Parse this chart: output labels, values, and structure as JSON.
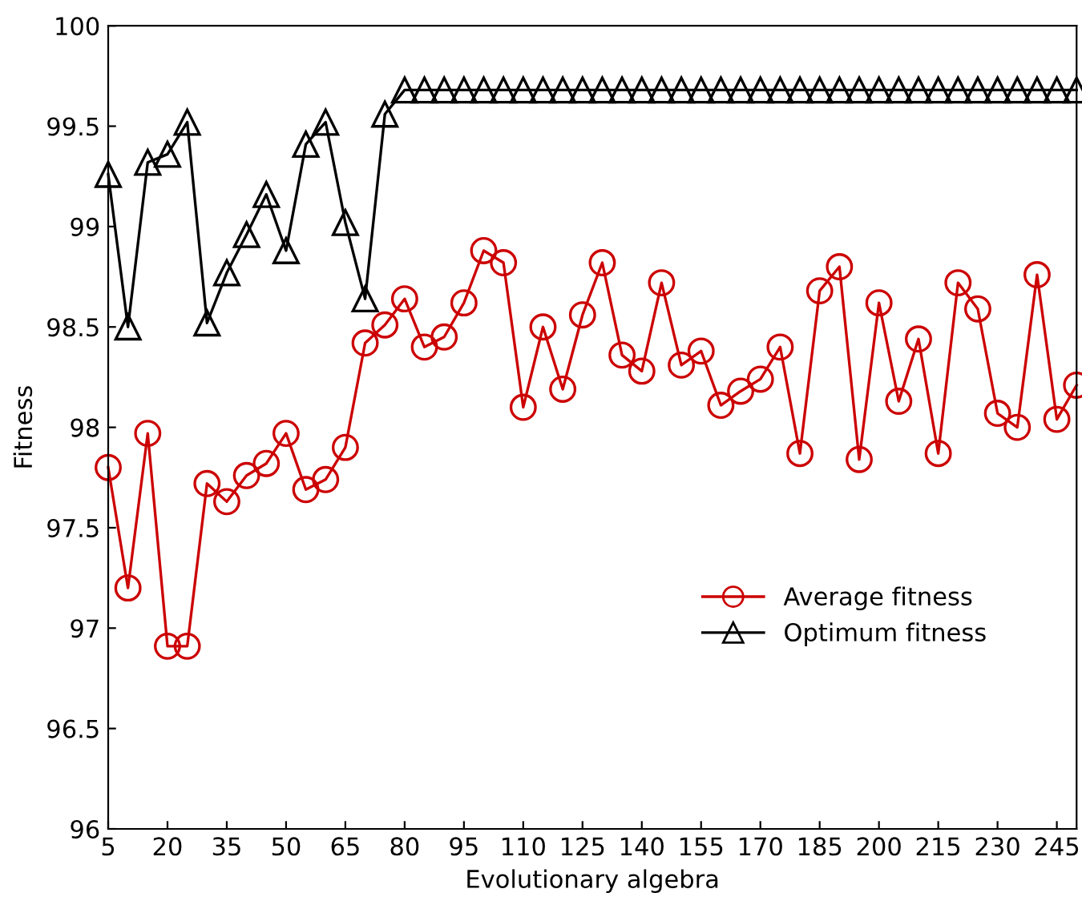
{
  "chart_data": {
    "type": "line",
    "xlabel": "Evolutionary algebra",
    "ylabel": "Fitness",
    "x": [
      5,
      10,
      15,
      20,
      25,
      30,
      35,
      40,
      45,
      50,
      55,
      60,
      65,
      70,
      75,
      80,
      85,
      90,
      95,
      100,
      105,
      110,
      115,
      120,
      125,
      130,
      135,
      140,
      145,
      150,
      155,
      160,
      165,
      170,
      175,
      180,
      185,
      190,
      195,
      200,
      205,
      210,
      215,
      220,
      225,
      230,
      235,
      240,
      245,
      250
    ],
    "series": [
      {
        "name": "Average fitness",
        "color": "#cc0000",
        "marker": "circle",
        "values": [
          97.8,
          97.2,
          97.97,
          96.91,
          96.91,
          97.72,
          97.63,
          97.76,
          97.82,
          97.97,
          97.69,
          97.74,
          97.9,
          98.42,
          98.51,
          98.64,
          98.4,
          98.45,
          98.62,
          98.88,
          98.82,
          98.1,
          98.5,
          98.19,
          98.56,
          98.82,
          98.36,
          98.28,
          98.72,
          98.31,
          98.38,
          98.11,
          98.18,
          98.24,
          98.4,
          97.87,
          98.68,
          98.8,
          97.84,
          98.62,
          98.13,
          98.44,
          97.87,
          98.72,
          98.59,
          98.07,
          98.0,
          98.76,
          98.04,
          98.21
        ]
      },
      {
        "name": "Optimum fitness",
        "color": "#000000",
        "marker": "triangle",
        "values": [
          99.26,
          98.5,
          99.32,
          99.36,
          99.52,
          98.52,
          98.77,
          98.96,
          99.16,
          98.88,
          99.41,
          99.52,
          99.02,
          98.64,
          99.56,
          99.68,
          99.68,
          99.68,
          99.68,
          99.68,
          99.68,
          99.68,
          99.68,
          99.68,
          99.68,
          99.68,
          99.68,
          99.68,
          99.68,
          99.68,
          99.68,
          99.68,
          99.68,
          99.68,
          99.68,
          99.68,
          99.68,
          99.68,
          99.68,
          99.68,
          99.68,
          99.68,
          99.68,
          99.68,
          99.68,
          99.68,
          99.68,
          99.68,
          99.68,
          99.68
        ]
      }
    ],
    "xlim": [
      5,
      250
    ],
    "xticks": [
      5,
      20,
      35,
      50,
      65,
      80,
      95,
      110,
      125,
      140,
      155,
      170,
      185,
      200,
      215,
      230,
      245
    ],
    "ylim": [
      96,
      100
    ],
    "yticks": [
      96,
      96.5,
      97,
      97.5,
      98,
      98.5,
      99,
      99.5,
      100
    ],
    "grid": false,
    "legend": "lower right",
    "line_style": "solid"
  }
}
